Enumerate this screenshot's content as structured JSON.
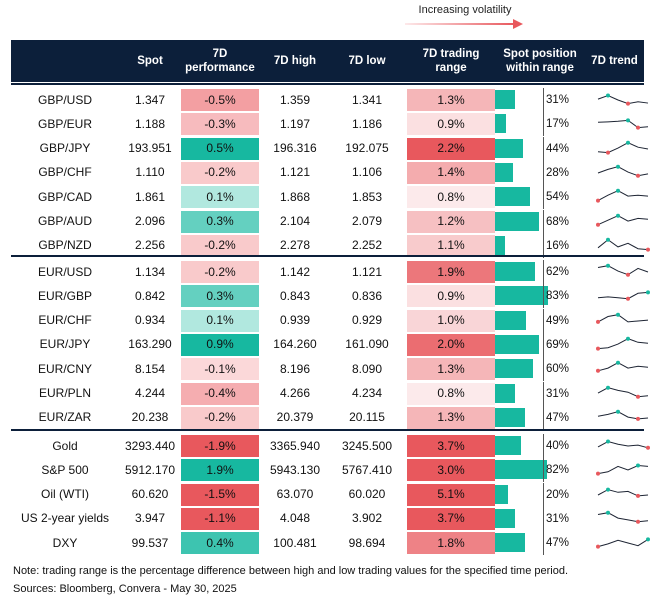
{
  "legend": {
    "label": "Increasing volatility"
  },
  "columns": [
    {
      "key": "spot",
      "label": "Spot"
    },
    {
      "key": "perf",
      "label": "7D\nperformance"
    },
    {
      "key": "high",
      "label": "7D high"
    },
    {
      "key": "low",
      "label": "7D low"
    },
    {
      "key": "range",
      "label": "7D trading\nrange"
    },
    {
      "key": "pos",
      "label": "Spot position\nwithin range"
    },
    {
      "key": "trend",
      "label": "7D trend"
    }
  ],
  "colors": {
    "header": "#0c1f3a",
    "teal": "#17b8a0",
    "red": "#e8585d"
  },
  "groups": [
    {
      "rows": [
        {
          "name": "GBP/USD",
          "spot": "1.347",
          "perf": "-0.5%",
          "high": "1.359",
          "low": "1.341",
          "range": "1.3%",
          "pos": "31%",
          "perf_v": -0.5,
          "range_v": 1.3,
          "pos_v": 31,
          "trend": [
            0.55,
            0.75,
            0.5,
            0.3,
            0.4,
            0.33
          ]
        },
        {
          "name": "GBP/EUR",
          "spot": "1.188",
          "perf": "-0.3%",
          "high": "1.197",
          "low": "1.186",
          "range": "0.9%",
          "pos": "17%",
          "perf_v": -0.3,
          "range_v": 0.9,
          "pos_v": 17,
          "trend": [
            0.6,
            0.62,
            0.65,
            0.7,
            0.3,
            0.35
          ]
        },
        {
          "name": "GBP/JPY",
          "spot": "193.951",
          "perf": "0.5%",
          "high": "196.316",
          "low": "192.075",
          "range": "2.2%",
          "pos": "44%",
          "perf_v": 0.5,
          "range_v": 2.2,
          "pos_v": 44,
          "trend": [
            0.35,
            0.3,
            0.55,
            0.85,
            0.6,
            0.5
          ]
        },
        {
          "name": "GBP/CHF",
          "spot": "1.110",
          "perf": "-0.2%",
          "high": "1.121",
          "low": "1.106",
          "range": "1.4%",
          "pos": "28%",
          "perf_v": -0.2,
          "range_v": 1.4,
          "pos_v": 28,
          "trend": [
            0.5,
            0.7,
            0.85,
            0.55,
            0.35,
            0.45
          ]
        },
        {
          "name": "GBP/CAD",
          "spot": "1.861",
          "perf": "0.1%",
          "high": "1.868",
          "low": "1.853",
          "range": "0.8%",
          "pos": "54%",
          "perf_v": 0.1,
          "range_v": 0.8,
          "pos_v": 54,
          "trend": [
            0.3,
            0.6,
            0.85,
            0.55,
            0.6,
            0.55
          ]
        },
        {
          "name": "GBP/AUD",
          "spot": "2.096",
          "perf": "0.3%",
          "high": "2.104",
          "low": "2.079",
          "range": "1.2%",
          "pos": "68%",
          "perf_v": 0.3,
          "range_v": 1.2,
          "pos_v": 68,
          "trend": [
            0.35,
            0.6,
            0.85,
            0.55,
            0.7,
            0.65
          ]
        },
        {
          "name": "GBP/NZD",
          "spot": "2.256",
          "perf": "-0.2%",
          "high": "2.278",
          "low": "2.252",
          "range": "1.1%",
          "pos": "16%",
          "perf_v": -0.2,
          "range_v": 1.1,
          "pos_v": 16,
          "trend": [
            0.4,
            0.85,
            0.45,
            0.65,
            0.35,
            0.3
          ]
        }
      ]
    },
    {
      "rows": [
        {
          "name": "EUR/USD",
          "spot": "1.134",
          "perf": "-0.2%",
          "high": "1.142",
          "low": "1.121",
          "range": "1.9%",
          "pos": "62%",
          "perf_v": -0.2,
          "range_v": 1.9,
          "pos_v": 62,
          "trend": [
            0.75,
            0.85,
            0.55,
            0.35,
            0.7,
            0.5
          ]
        },
        {
          "name": "EUR/GBP",
          "spot": "0.842",
          "perf": "0.3%",
          "high": "0.843",
          "low": "0.836",
          "range": "0.9%",
          "pos": "83%",
          "perf_v": 0.3,
          "range_v": 0.9,
          "pos_v": 83,
          "trend": [
            0.4,
            0.45,
            0.4,
            0.35,
            0.65,
            0.7
          ]
        },
        {
          "name": "EUR/CHF",
          "spot": "0.934",
          "perf": "0.1%",
          "high": "0.939",
          "low": "0.929",
          "range": "1.0%",
          "pos": "49%",
          "perf_v": 0.1,
          "range_v": 1.0,
          "pos_v": 49,
          "trend": [
            0.45,
            0.75,
            0.85,
            0.45,
            0.5,
            0.55
          ]
        },
        {
          "name": "EUR/JPY",
          "spot": "163.290",
          "perf": "0.9%",
          "high": "164.260",
          "low": "161.090",
          "range": "2.0%",
          "pos": "69%",
          "perf_v": 0.9,
          "range_v": 2.0,
          "pos_v": 69,
          "trend": [
            0.3,
            0.35,
            0.55,
            0.85,
            0.65,
            0.6
          ]
        },
        {
          "name": "EUR/CNY",
          "spot": "8.154",
          "perf": "-0.1%",
          "high": "8.196",
          "low": "8.090",
          "range": "1.3%",
          "pos": "60%",
          "perf_v": -0.1,
          "range_v": 1.3,
          "pos_v": 60,
          "trend": [
            0.4,
            0.55,
            0.85,
            0.55,
            0.65,
            0.6
          ]
        },
        {
          "name": "EUR/PLN",
          "spot": "4.244",
          "perf": "-0.4%",
          "high": "4.266",
          "low": "4.234",
          "range": "0.8%",
          "pos": "31%",
          "perf_v": -0.4,
          "range_v": 0.8,
          "pos_v": 31,
          "trend": [
            0.55,
            0.85,
            0.7,
            0.6,
            0.35,
            0.4
          ]
        },
        {
          "name": "EUR/ZAR",
          "spot": "20.238",
          "perf": "-0.2%",
          "high": "20.379",
          "low": "20.115",
          "range": "1.3%",
          "pos": "47%",
          "perf_v": -0.2,
          "range_v": 1.3,
          "pos_v": 47,
          "trend": [
            0.6,
            0.7,
            0.85,
            0.55,
            0.45,
            0.5
          ]
        }
      ]
    },
    {
      "rows": [
        {
          "name": "Gold",
          "spot": "3293.440",
          "perf": "-1.9%",
          "high": "3365.940",
          "low": "3245.500",
          "range": "3.7%",
          "pos": "40%",
          "perf_v": -1.9,
          "range_v": 3.7,
          "pos_v": 40,
          "trend": [
            0.45,
            0.75,
            0.6,
            0.5,
            0.55,
            0.4
          ]
        },
        {
          "name": "S&P 500",
          "spot": "5912.170",
          "perf": "1.9%",
          "high": "5943.130",
          "low": "5767.410",
          "range": "3.0%",
          "pos": "82%",
          "perf_v": 1.9,
          "range_v": 3.0,
          "pos_v": 82,
          "trend": [
            0.3,
            0.4,
            0.7,
            0.5,
            0.75,
            0.7
          ]
        },
        {
          "name": "Oil (WTI)",
          "spot": "60.620",
          "perf": "-1.5%",
          "high": "63.070",
          "low": "60.020",
          "range": "5.1%",
          "pos": "20%",
          "perf_v": -1.5,
          "range_v": 5.1,
          "pos_v": 20,
          "trend": [
            0.5,
            0.8,
            0.65,
            0.7,
            0.45,
            0.5
          ]
        },
        {
          "name": "US 2-year yields",
          "spot": "3.947",
          "perf": "-1.1%",
          "high": "4.048",
          "low": "3.902",
          "range": "3.7%",
          "pos": "31%",
          "perf_v": -1.1,
          "range_v": 3.7,
          "pos_v": 31,
          "trend": [
            0.75,
            0.85,
            0.55,
            0.45,
            0.35,
            0.4
          ]
        },
        {
          "name": "DXY",
          "spot": "99.537",
          "perf": "0.4%",
          "high": "100.481",
          "low": "98.694",
          "range": "1.8%",
          "pos": "47%",
          "perf_v": 0.4,
          "range_v": 1.8,
          "pos_v": 47,
          "trend": [
            0.3,
            0.45,
            0.65,
            0.5,
            0.35,
            0.7
          ]
        }
      ]
    }
  ],
  "notes": {
    "line1": "Note: trading range is the percentage difference between high and low trading values for the specified time period.",
    "line2": "Sources: Bloomberg, Convera - May 30, 2025"
  },
  "chart_data": {
    "type": "table",
    "title": "",
    "columns": [
      "Spot",
      "7D performance",
      "7D high",
      "7D low",
      "7D trading range",
      "Spot position within range",
      "7D trend"
    ],
    "legend": "Increasing volatility"
  }
}
